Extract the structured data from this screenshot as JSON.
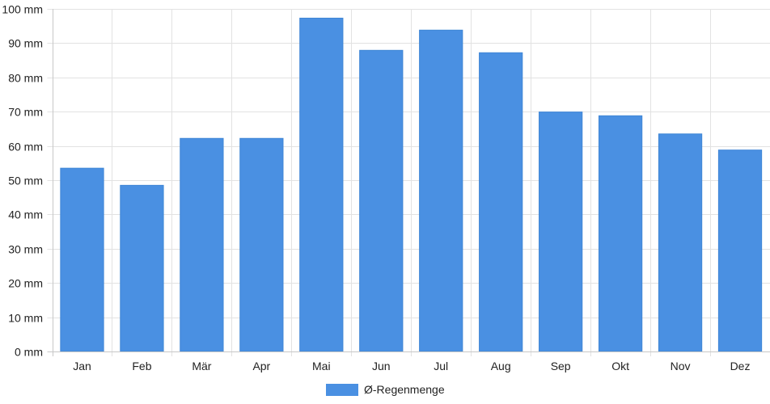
{
  "chart_data": {
    "type": "bar",
    "categories": [
      "Jan",
      "Feb",
      "Mär",
      "Apr",
      "Mai",
      "Jun",
      "Jul",
      "Aug",
      "Sep",
      "Okt",
      "Nov",
      "Dez"
    ],
    "series": [
      {
        "name": "Ø-Regenmenge",
        "values": [
          53.5,
          48.5,
          62.2,
          62.2,
          97.3,
          87.9,
          93.8,
          87.2,
          69.9,
          68.8,
          63.5,
          58.8
        ],
        "color": "#4a90e2"
      }
    ],
    "yticks": [
      "0 mm",
      "10 mm",
      "20 mm",
      "30 mm",
      "40 mm",
      "50 mm",
      "60 mm",
      "70 mm",
      "80 mm",
      "90 mm",
      "100 mm"
    ],
    "ylim": [
      0,
      100
    ],
    "grid": true,
    "legend": "bottom"
  }
}
